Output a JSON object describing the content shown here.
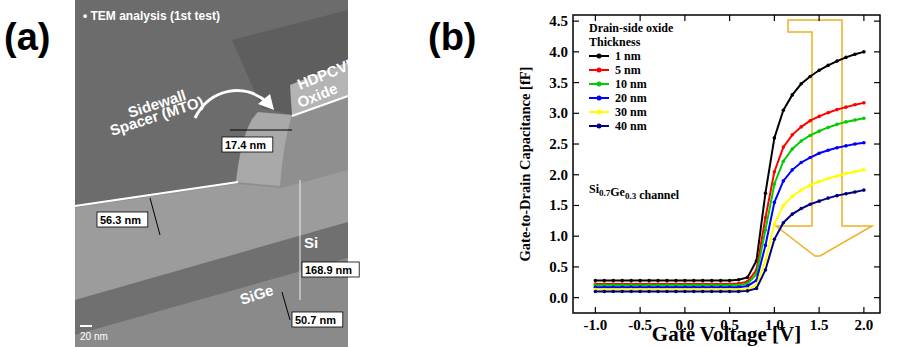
{
  "panel_a": {
    "label": "(a)",
    "caption": "• TEM analysis (1st test)",
    "texts": [
      {
        "lines": [
          "Sidewall",
          "Spacer (MTO)"
        ]
      },
      {
        "lines": [
          "HDPCVD",
          "Oxide"
        ]
      },
      {
        "lines": [
          "Si"
        ]
      },
      {
        "lines": [
          "SiGe"
        ]
      }
    ],
    "dimensions": [
      "17.4 nm",
      "56.3 nm",
      "168.9 nm",
      "50.7 nm"
    ],
    "scale_bar": "20 nm"
  },
  "chart_data": {
    "type": "line",
    "panel_label": "(b)",
    "x_label": "Gate Voltage [V]",
    "y_label": "Gate-to-Drain Capacitance [fF]",
    "legend_title": [
      "Drain-side oxide",
      "Thickness"
    ],
    "annotations": [
      "Si0.7Ge0.3 channel"
    ],
    "legend": "upper left",
    "marker": "circle",
    "grid": false,
    "xlim": [
      -1.25,
      2.18
    ],
    "ylim": [
      -0.25,
      4.6
    ],
    "xticks": [
      {
        "value": -1,
        "label": "-1.0"
      },
      {
        "value": -0.5,
        "label": "-0.5"
      },
      {
        "value": 0,
        "label": "0.0"
      },
      {
        "value": 0.5,
        "label": "0.5"
      },
      {
        "value": 1,
        "label": "1.0"
      },
      {
        "value": 1.5,
        "label": "1.5"
      },
      {
        "value": 2,
        "label": "2.0"
      }
    ],
    "yticks": [
      {
        "value": 0,
        "label": "0.0"
      },
      {
        "value": 0.5,
        "label": "0.5"
      },
      {
        "value": 1,
        "label": "1.0"
      },
      {
        "value": 1.5,
        "label": "1.5"
      },
      {
        "value": 2,
        "label": "2.0"
      },
      {
        "value": 2.5,
        "label": "2.5"
      },
      {
        "value": 3,
        "label": "3.0"
      },
      {
        "value": 3.5,
        "label": "3.5"
      },
      {
        "value": 4,
        "label": "4.0"
      },
      {
        "value": 4.5,
        "label": "4.5"
      }
    ],
    "x": [
      -1,
      -0.9,
      -0.8,
      -0.7,
      -0.6,
      -0.5,
      -0.4,
      -0.3,
      -0.2,
      -0.1,
      0,
      0.1,
      0.2,
      0.3,
      0.4,
      0.5,
      0.6,
      0.7,
      0.8,
      0.9,
      1,
      1.1,
      1.2,
      1.3,
      1.4,
      1.5,
      1.6,
      1.7,
      1.8,
      1.9,
      2
    ],
    "series": [
      {
        "name": "1 nm",
        "color": "#000000",
        "values": [
          0.28,
          0.28,
          0.28,
          0.28,
          0.28,
          0.28,
          0.28,
          0.28,
          0.28,
          0.28,
          0.28,
          0.28,
          0.28,
          0.28,
          0.28,
          0.28,
          0.29,
          0.33,
          0.6,
          1.7,
          2.6,
          3.05,
          3.3,
          3.48,
          3.6,
          3.7,
          3.78,
          3.85,
          3.91,
          3.96,
          4.0
        ]
      },
      {
        "name": "5 nm",
        "color": "#ff0000",
        "values": [
          0.22,
          0.22,
          0.22,
          0.22,
          0.22,
          0.22,
          0.22,
          0.22,
          0.22,
          0.22,
          0.22,
          0.22,
          0.22,
          0.22,
          0.22,
          0.22,
          0.23,
          0.26,
          0.45,
          1.3,
          2.05,
          2.45,
          2.65,
          2.78,
          2.88,
          2.95,
          3.01,
          3.06,
          3.1,
          3.14,
          3.17
        ]
      },
      {
        "name": "10 nm",
        "color": "#00cc00",
        "values": [
          0.2,
          0.2,
          0.2,
          0.2,
          0.2,
          0.2,
          0.2,
          0.2,
          0.2,
          0.2,
          0.2,
          0.2,
          0.2,
          0.2,
          0.2,
          0.2,
          0.2,
          0.23,
          0.38,
          1.1,
          1.85,
          2.22,
          2.42,
          2.55,
          2.64,
          2.71,
          2.77,
          2.82,
          2.86,
          2.89,
          2.92
        ]
      },
      {
        "name": "20 nm",
        "color": "#0000ff",
        "values": [
          0.17,
          0.17,
          0.17,
          0.17,
          0.17,
          0.17,
          0.17,
          0.17,
          0.17,
          0.17,
          0.17,
          0.17,
          0.17,
          0.17,
          0.17,
          0.17,
          0.17,
          0.19,
          0.28,
          0.85,
          1.55,
          1.9,
          2.08,
          2.2,
          2.28,
          2.35,
          2.4,
          2.44,
          2.47,
          2.5,
          2.52
        ]
      },
      {
        "name": "30 nm",
        "color": "#ffff00",
        "values": [
          0.13,
          0.13,
          0.13,
          0.13,
          0.13,
          0.13,
          0.13,
          0.13,
          0.13,
          0.13,
          0.13,
          0.13,
          0.13,
          0.13,
          0.13,
          0.13,
          0.13,
          0.14,
          0.2,
          0.6,
          1.2,
          1.5,
          1.65,
          1.75,
          1.83,
          1.89,
          1.94,
          1.98,
          2.02,
          2.05,
          2.08
        ]
      },
      {
        "name": "40 nm",
        "color": "#000080",
        "values": [
          0.1,
          0.1,
          0.1,
          0.1,
          0.1,
          0.1,
          0.1,
          0.1,
          0.1,
          0.1,
          0.1,
          0.1,
          0.1,
          0.1,
          0.1,
          0.1,
          0.1,
          0.11,
          0.15,
          0.45,
          0.95,
          1.22,
          1.36,
          1.45,
          1.52,
          1.57,
          1.62,
          1.66,
          1.69,
          1.72,
          1.75
        ]
      }
    ]
  }
}
